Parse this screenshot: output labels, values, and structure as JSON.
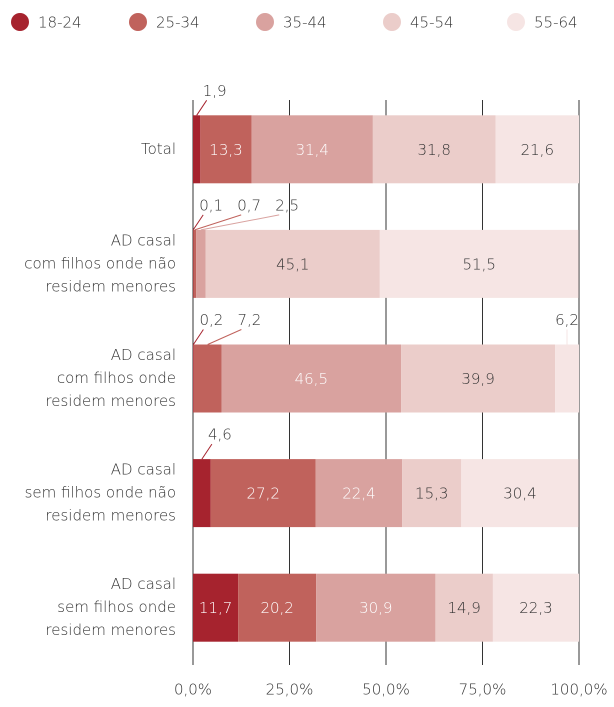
{
  "chart_data": {
    "type": "stacked-barh",
    "categories": [
      [
        "Total"
      ],
      [
        "AD casal",
        "com filhos onde não",
        "residem menores"
      ],
      [
        "AD casal",
        "com filhos onde",
        "residem menores"
      ],
      [
        "AD casal",
        "sem filhos onde não",
        "residem menores"
      ],
      [
        "AD casal",
        "sem filhos onde",
        "residem menores"
      ]
    ],
    "series": [
      {
        "name": "18-24",
        "color": "#a6232e",
        "values": [
          1.9,
          0.1,
          0.2,
          4.6,
          11.7
        ],
        "value_labels": [
          "1,9",
          "0,1",
          "0,2",
          "4,6",
          "11,7"
        ]
      },
      {
        "name": "25-34",
        "color": "#c0625c",
        "values": [
          13.3,
          0.7,
          7.2,
          27.2,
          20.2
        ],
        "value_labels": [
          "13,3",
          "0,7",
          "7,2",
          "27,2",
          "20,2"
        ]
      },
      {
        "name": "35-44",
        "color": "#d9a29f",
        "values": [
          31.4,
          2.5,
          46.5,
          22.4,
          30.9
        ],
        "value_labels": [
          "31,4",
          "2,5",
          "46,5",
          "22,4",
          "30,9"
        ]
      },
      {
        "name": "45-54",
        "color": "#ebcdca",
        "values": [
          31.8,
          45.1,
          39.9,
          15.3,
          14.9
        ],
        "value_labels": [
          "31,8",
          "45,1",
          "39,9",
          "15,3",
          "14,9"
        ]
      },
      {
        "name": "55-64",
        "color": "#f6e5e4",
        "values": [
          21.6,
          51.5,
          6.2,
          30.4,
          22.3
        ],
        "value_labels": [
          "21,6",
          "51,5",
          "6,2",
          "30,4",
          "22,3"
        ]
      }
    ],
    "xlim": [
      0,
      100
    ],
    "xticks": [
      {
        "value": 0,
        "label": "0,0%"
      },
      {
        "value": 25,
        "label": "25,0%"
      },
      {
        "value": 50,
        "label": "50,0%"
      },
      {
        "value": 75,
        "label": "75,0%"
      },
      {
        "value": 100,
        "label": "100,0%"
      }
    ],
    "grid": true,
    "legend": "top"
  }
}
